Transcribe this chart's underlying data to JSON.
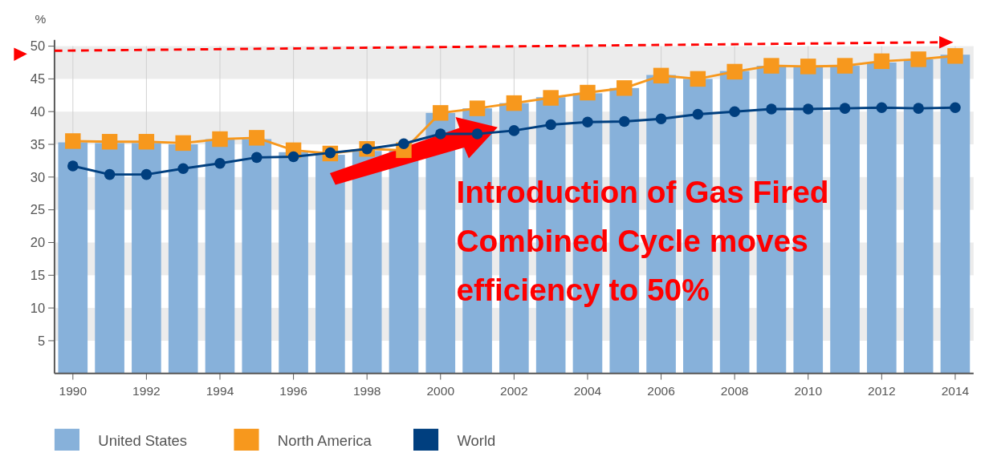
{
  "chart_data": {
    "type": "bar",
    "ylabel": "%",
    "x": [
      1990,
      1991,
      1992,
      1993,
      1994,
      1995,
      1996,
      1997,
      1998,
      1999,
      2000,
      2001,
      2002,
      2003,
      2004,
      2005,
      2006,
      2007,
      2008,
      2009,
      2010,
      2011,
      2012,
      2013,
      2014
    ],
    "xlim": [
      1989.5,
      2014.5
    ],
    "xticks": [
      1990,
      1992,
      1994,
      1996,
      1998,
      2000,
      2002,
      2004,
      2006,
      2008,
      2010,
      2012,
      2014
    ],
    "ylim": [
      0,
      50
    ],
    "yticks": [
      5,
      10,
      15,
      20,
      25,
      30,
      35,
      40,
      45,
      50
    ],
    "grid": true,
    "legend": "bottom",
    "series": [
      {
        "name": "United States",
        "color": "#87b1da",
        "values": [
          35.3,
          35.2,
          35.2,
          35.0,
          35.8,
          35.8,
          33.8,
          33.4,
          34.0,
          34.2,
          39.8,
          40.5,
          41.3,
          42.2,
          42.8,
          43.6,
          45.6,
          45.0,
          46.2,
          47.0,
          46.8,
          47.0,
          47.5,
          48.0,
          48.7
        ]
      },
      {
        "name": "North America",
        "type": "line",
        "marker": "square",
        "color": "#f7981d",
        "values": [
          35.5,
          35.4,
          35.4,
          35.2,
          35.8,
          36.0,
          34.1,
          33.6,
          34.3,
          34.1,
          39.8,
          40.5,
          41.3,
          42.1,
          42.9,
          43.6,
          45.5,
          45.0,
          46.1,
          47.0,
          46.9,
          47.0,
          47.7,
          48.0,
          48.5
        ]
      },
      {
        "name": "World",
        "type": "line",
        "marker": "circle",
        "color": "#003f7f",
        "values": [
          31.7,
          30.4,
          30.4,
          31.3,
          32.1,
          33.0,
          33.1,
          33.7,
          34.3,
          35.1,
          36.6,
          36.6,
          37.1,
          38.0,
          38.4,
          38.5,
          38.9,
          39.6,
          40.0,
          40.4,
          40.4,
          40.5,
          40.6,
          40.5,
          40.6
        ]
      }
    ],
    "annotations": [
      "Introduction of Gas Fired Combined Cycle moves efficiency to 50%"
    ]
  }
}
